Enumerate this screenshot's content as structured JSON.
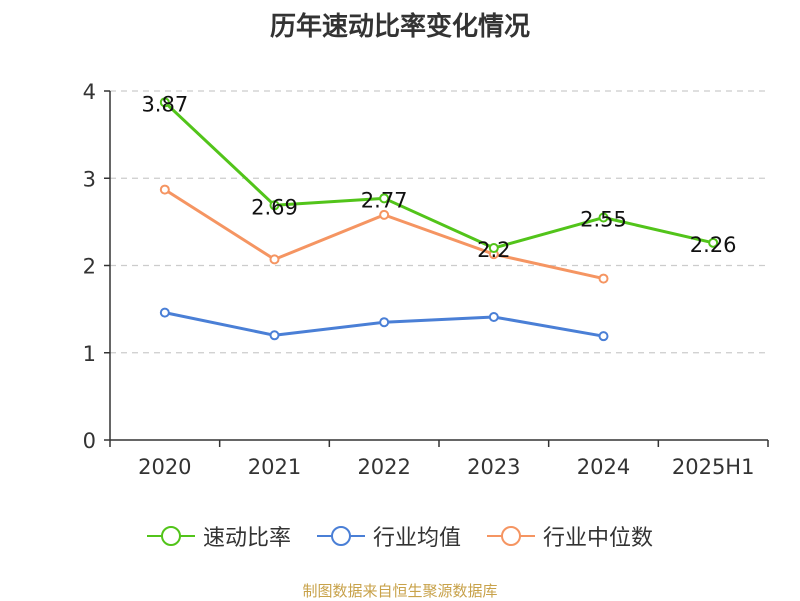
{
  "chart_data": {
    "type": "line",
    "title": "历年速动比率变化情况",
    "categories": [
      "2020",
      "2021",
      "2022",
      "2023",
      "2024",
      "2025H1"
    ],
    "ylim": [
      0,
      4
    ],
    "yticks": [
      "0",
      "1",
      "2",
      "3",
      "4"
    ],
    "grid": true,
    "series": [
      {
        "name": "速动比率",
        "color": "#52c41a",
        "values": [
          3.87,
          2.69,
          2.77,
          2.2,
          2.55,
          2.26
        ],
        "labels": [
          "3.87",
          "2.69",
          "2.77",
          "2.2",
          "2.55",
          "2.26"
        ]
      },
      {
        "name": "行业均值",
        "color": "#4a7fd6",
        "values": [
          1.46,
          1.2,
          1.35,
          1.41,
          1.19,
          null
        ]
      },
      {
        "name": "行业中位数",
        "color": "#f59562",
        "values": [
          2.87,
          2.07,
          2.58,
          2.13,
          1.85,
          null
        ]
      }
    ],
    "legend_position": "bottom"
  },
  "source": "制图数据来自恒生聚源数据库"
}
